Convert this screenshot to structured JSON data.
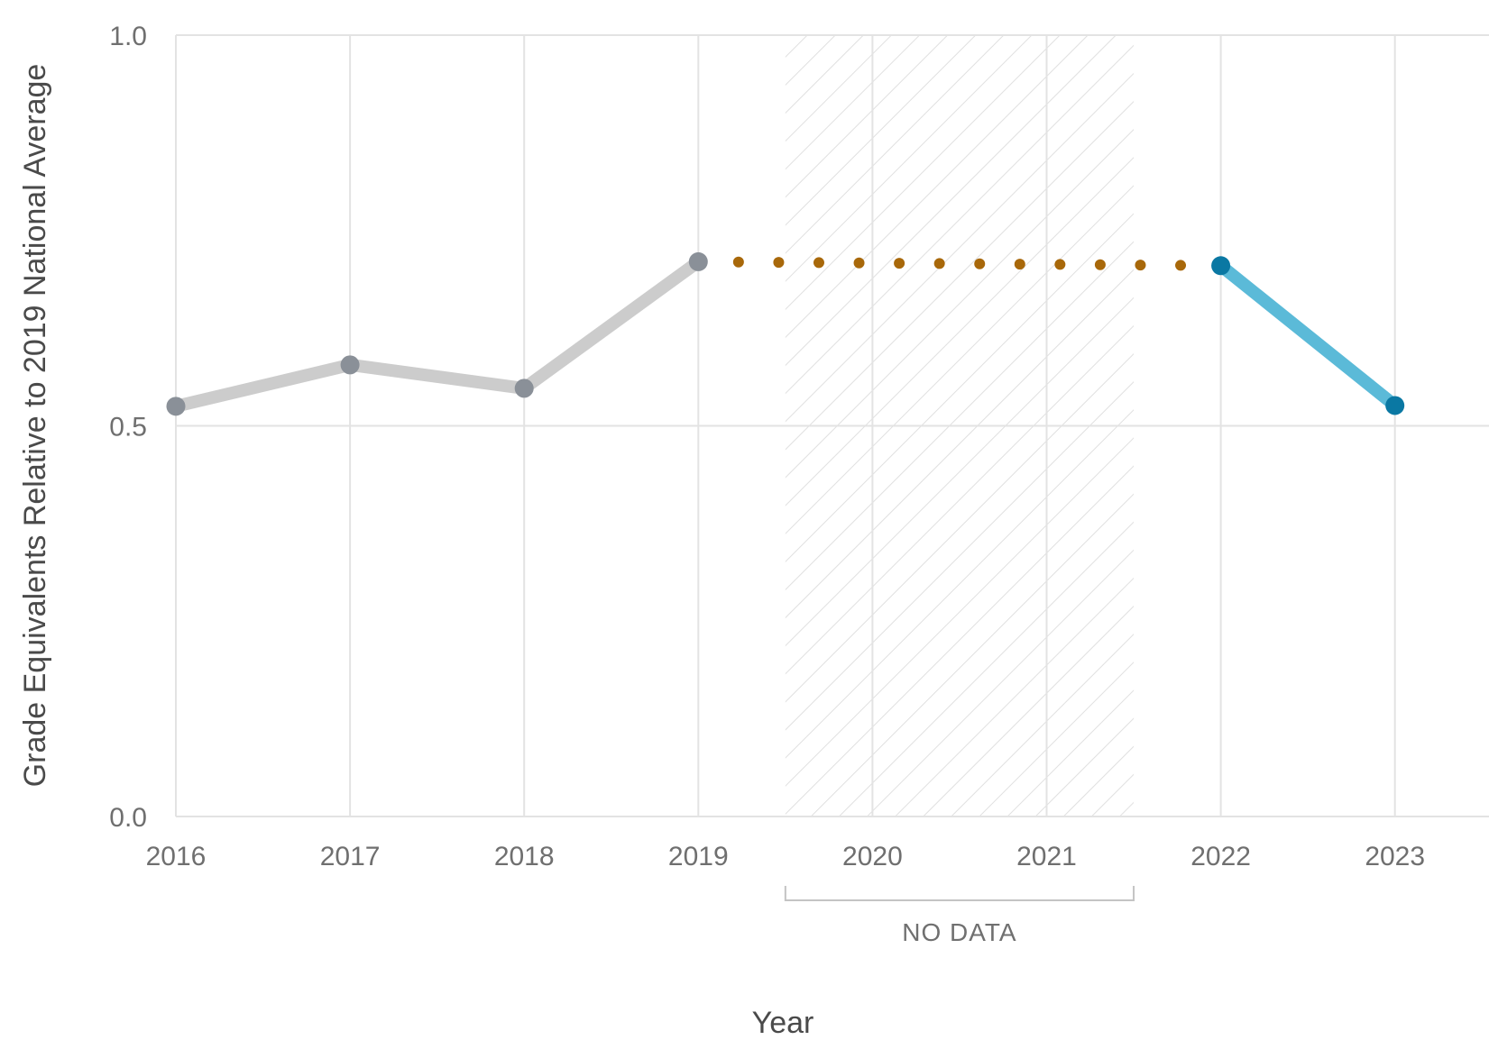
{
  "chart_data": {
    "type": "line",
    "xlabel": "Year",
    "ylabel": "Grade Equivalents Relative to 2019 National Average",
    "x": [
      "2016",
      "2017",
      "2018",
      "2019",
      "2020",
      "2021",
      "2022",
      "2023"
    ],
    "ylim": [
      0,
      1
    ],
    "yticks": [
      "0.0",
      "0.5",
      "1.0"
    ],
    "grid": true,
    "no_data_label": "NO DATA",
    "no_data_range": [
      "2020",
      "2021"
    ],
    "series": [
      {
        "style": "solid",
        "color": "#cccccc",
        "marker_color": "#8a9098",
        "points": [
          {
            "x": "2016",
            "y": 0.525
          },
          {
            "x": "2017",
            "y": 0.578
          },
          {
            "x": "2018",
            "y": 0.548
          },
          {
            "x": "2019",
            "y": 0.71
          }
        ]
      },
      {
        "style": "dotted",
        "color": "#a8680a",
        "points": [
          {
            "x": "2019",
            "y": 0.71
          },
          {
            "x": "2022",
            "y": 0.705
          }
        ]
      },
      {
        "style": "solid",
        "color": "#5bbad8",
        "marker_color": "#0a78a3",
        "points": [
          {
            "x": "2022",
            "y": 0.705
          },
          {
            "x": "2023",
            "y": 0.526
          }
        ]
      }
    ]
  }
}
